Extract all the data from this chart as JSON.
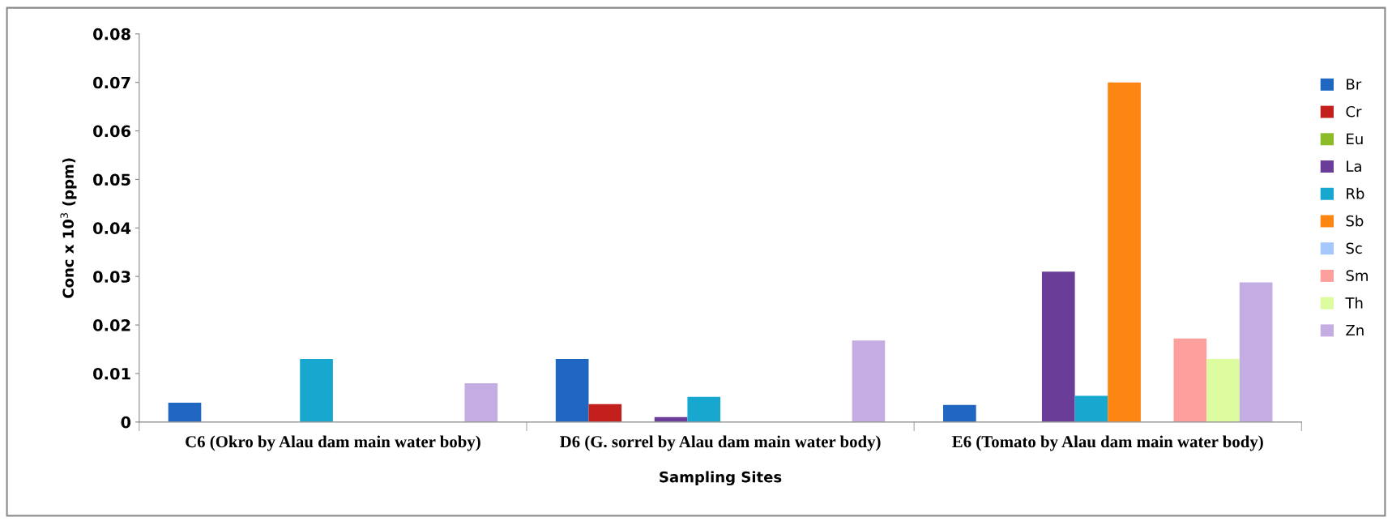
{
  "chart_data": {
    "type": "bar",
    "xlabel": "Sampling Sites",
    "ylabel": "Conc x 10$^{3}$ (ppm)",
    "categories": [
      "C6 (Okro by Alau dam main water boby)",
      "D6 (G. sorrel by Alau dam main water body)",
      "E6 (Tomato by Alau dam main water body)"
    ],
    "series": [
      {
        "name": "Br",
        "color": "#1f67c1",
        "values": [
          0.004,
          0.013,
          0.0035
        ]
      },
      {
        "name": "Cr",
        "color": "#c3201d",
        "values": [
          0,
          0.0037,
          0
        ]
      },
      {
        "name": "Eu",
        "color": "#8cbb2a",
        "values": [
          0,
          0,
          0
        ]
      },
      {
        "name": "La",
        "color": "#6a3d98",
        "values": [
          0,
          0.001,
          0.031
        ]
      },
      {
        "name": "Rb",
        "color": "#17a7cf",
        "values": [
          0.013,
          0.0052,
          0.0054
        ]
      },
      {
        "name": "Sb",
        "color": "#fd8512",
        "values": [
          0,
          0,
          0.07
        ]
      },
      {
        "name": "Sc",
        "color": "#a4c8fd",
        "values": [
          0,
          0,
          0
        ]
      },
      {
        "name": "Sm",
        "color": "#fd9f9d",
        "values": [
          0,
          0,
          0.0172
        ]
      },
      {
        "name": "Th",
        "color": "#ddfb9f",
        "values": [
          0,
          0,
          0.013
        ]
      },
      {
        "name": "Zn",
        "color": "#c4ade2",
        "values": [
          0.008,
          0.0168,
          0.0288
        ]
      }
    ],
    "ylim": [
      0,
      0.08
    ],
    "yticks": [
      {
        "value": 0,
        "label": "0"
      },
      0.01,
      0.02,
      0.03,
      0.04,
      0.05,
      0.06,
      0.07,
      0.08
    ],
    "grid": false,
    "legend": "right"
  }
}
